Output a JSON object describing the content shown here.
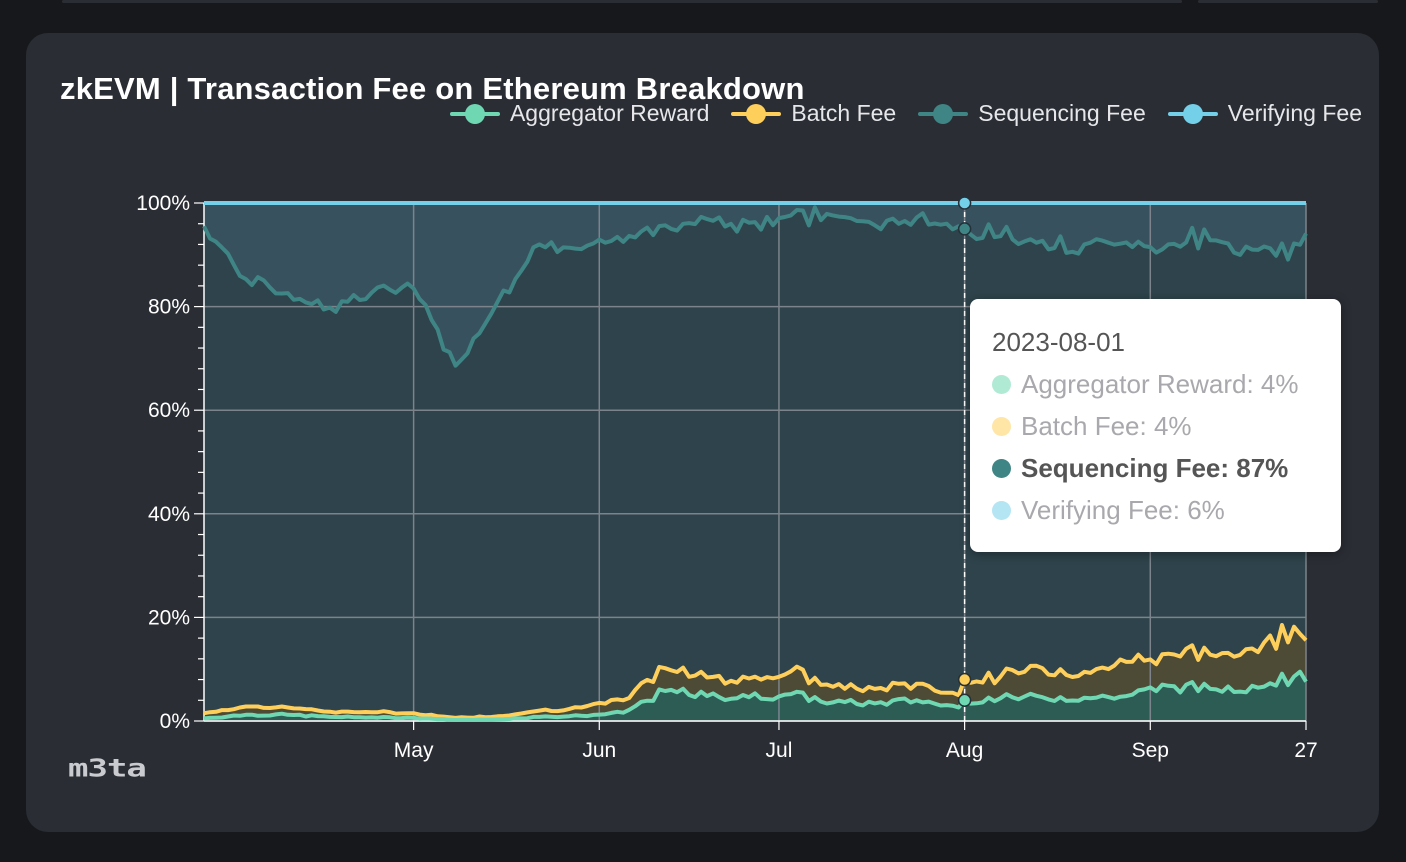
{
  "title": "zkEVM | Transaction Fee on Ethereum Breakdown",
  "legend": [
    {
      "label": "Aggregator Reward",
      "color": "#6fd8b3"
    },
    {
      "label": "Batch Fee",
      "color": "#ffcf5c"
    },
    {
      "label": "Sequencing Fee",
      "color": "#3f8585"
    },
    {
      "label": "Verifying Fee",
      "color": "#74cfe9"
    }
  ],
  "tooltip": {
    "date": "2023-08-01",
    "rows": [
      {
        "label": "Aggregator Reward: 4%",
        "color": "#6fd8b3",
        "active": false
      },
      {
        "label": "Batch Fee: 4%",
        "color": "#ffcf5c",
        "active": false
      },
      {
        "label": "Sequencing Fee: 87%",
        "color": "#3f8585",
        "active": true
      },
      {
        "label": "Verifying Fee: 6%",
        "color": "#74cfe9",
        "active": false
      }
    ]
  },
  "logo": "m3ta",
  "chart_data": {
    "type": "area",
    "stacking": "percent",
    "title": "zkEVM | Transaction Fee on Ethereum Breakdown",
    "x_range": [
      "2023-03-27",
      "2023-09-27"
    ],
    "x_ticks": [
      "May",
      "Jun",
      "Jul",
      "Aug",
      "Sep",
      "27"
    ],
    "y_ticks": [
      "0%",
      "20%",
      "40%",
      "60%",
      "80%",
      "100%"
    ],
    "ylim": [
      0,
      100
    ],
    "grid": true,
    "legend_position": "top-right",
    "hover_date": "2023-08-01",
    "x": [
      "03-27",
      "04-03",
      "04-10",
      "04-17",
      "04-24",
      "05-01",
      "05-08",
      "05-15",
      "05-22",
      "05-29",
      "06-05",
      "06-12",
      "06-19",
      "06-26",
      "07-03",
      "07-10",
      "07-17",
      "07-24",
      "07-31",
      "08-01",
      "08-07",
      "08-14",
      "08-21",
      "08-28",
      "09-04",
      "09-11",
      "09-18",
      "09-25",
      "09-27"
    ],
    "series": [
      {
        "name": "Aggregator Reward",
        "values": [
          0.5,
          1.2,
          1.2,
          0.8,
          0.7,
          0.6,
          0.2,
          0.3,
          0.8,
          1.0,
          1.6,
          5.8,
          4.8,
          4.6,
          5.2,
          3.6,
          3.4,
          4.0,
          2.6,
          4.0,
          4.4,
          4.6,
          4.5,
          4.8,
          6.8,
          6.2,
          6.8,
          8.6,
          7.6
        ]
      },
      {
        "name": "Batch Fee",
        "values": [
          1.0,
          1.6,
          1.4,
          1.0,
          1.0,
          0.9,
          0.4,
          0.6,
          1.2,
          1.6,
          2.4,
          4.4,
          3.6,
          3.6,
          4.4,
          3.0,
          2.8,
          3.2,
          2.4,
          4.0,
          4.2,
          5.6,
          5.0,
          6.6,
          6.2,
          6.6,
          7.2,
          9.6,
          8.0
        ]
      },
      {
        "name": "Sequencing Fee",
        "values": [
          94.0,
          82.5,
          80.0,
          78.0,
          81.0,
          82.0,
          68.0,
          80.0,
          90.0,
          88.5,
          88.5,
          85.5,
          88.5,
          88.0,
          88.0,
          91.0,
          89.5,
          90.0,
          90.5,
          87.0,
          85.0,
          82.5,
          82.5,
          81.0,
          79.0,
          80.0,
          77.0,
          74.0,
          78.5
        ]
      },
      {
        "name": "Verifying Fee",
        "values": [
          4.5,
          14.7,
          17.4,
          20.2,
          17.3,
          16.5,
          31.4,
          19.1,
          8.0,
          8.9,
          7.5,
          4.3,
          3.1,
          3.8,
          2.4,
          2.4,
          4.3,
          2.8,
          4.5,
          6.0,
          6.4,
          7.3,
          8.0,
          7.6,
          8.0,
          7.2,
          9.0,
          7.8,
          5.9
        ]
      }
    ]
  }
}
